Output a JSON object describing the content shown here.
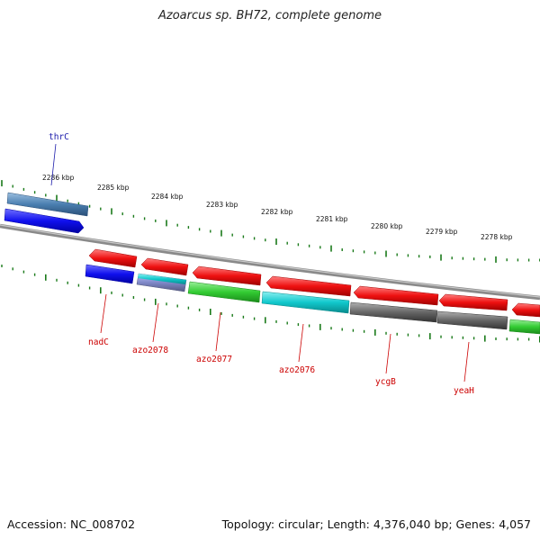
{
  "title": "Azoarcus sp. BH72, complete genome",
  "footer": {
    "accession": "Accession: NC_008702",
    "topology": "Topology: circular; Length: 4,376,040 bp; Genes: 4,057"
  },
  "scale_labels": [
    "2286 kbp",
    "2285 kbp",
    "2284 kbp",
    "2283 kbp",
    "2282 kbp",
    "2281 kbp",
    "2280 kbp",
    "2279 kbp",
    "2278 kbp"
  ],
  "gene_labels": {
    "thrC": "thrC",
    "nadC": "nadC",
    "azo2078": "azo2078",
    "azo2077": "azo2077",
    "azo2076": "azo2076",
    "ycgB": "ycgB",
    "yeaH": "yeaH"
  },
  "colors": {
    "red": "#ee1111",
    "blue": "#1010ee",
    "steel": "#4a7fb0",
    "green": "#33cc33",
    "cyan": "#11c8cc",
    "gray": "#666666",
    "ticks": "#1a7a1a",
    "backbone": "#8a8a8a"
  }
}
